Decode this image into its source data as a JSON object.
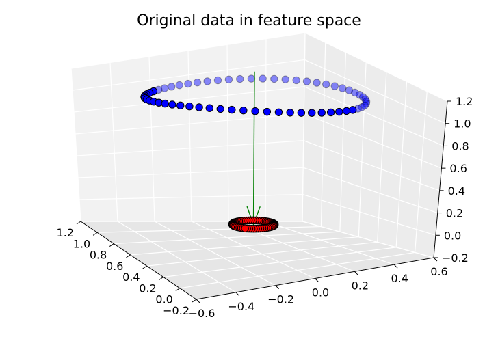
{
  "chart_data": {
    "type": "scatter",
    "projection": "3d",
    "title": "Original data in feature space",
    "xlabel": "",
    "ylabel": "",
    "zlabel": "",
    "grid": true,
    "x_ticks": [
      "−0.2",
      "0.0",
      "0.2",
      "0.4",
      "0.6",
      "0.8",
      "1.0",
      "1.2"
    ],
    "y_ticks": [
      "−0.6",
      "−0.4",
      "−0.2",
      "0.0",
      "0.2",
      "0.4",
      "0.6"
    ],
    "z_ticks": [
      "−0.2",
      "0.0",
      "0.2",
      "0.4",
      "0.6",
      "0.8",
      "1.0",
      "1.2"
    ],
    "xlim": [
      -0.2,
      1.2
    ],
    "ylim": [
      -0.6,
      0.6
    ],
    "zlim": [
      -0.2,
      1.2
    ],
    "colors": {
      "blue": "#0000ff",
      "red": "#ff0000",
      "arrow": "#008000"
    },
    "series": [
      {
        "marker_color": "blue",
        "shape": "ring",
        "center": [
          0.5,
          0.0,
          1.0
        ],
        "radius": 0.5,
        "points": 60
      },
      {
        "marker_color": "red",
        "shape": "ring",
        "center": [
          0.5,
          0.0,
          0.0
        ],
        "radius": 0.1,
        "points": 60
      }
    ],
    "arrow": {
      "color": "arrow",
      "from": [
        0.5,
        0.0,
        1.2
      ],
      "to": [
        0.5,
        0.0,
        0.0
      ]
    }
  }
}
